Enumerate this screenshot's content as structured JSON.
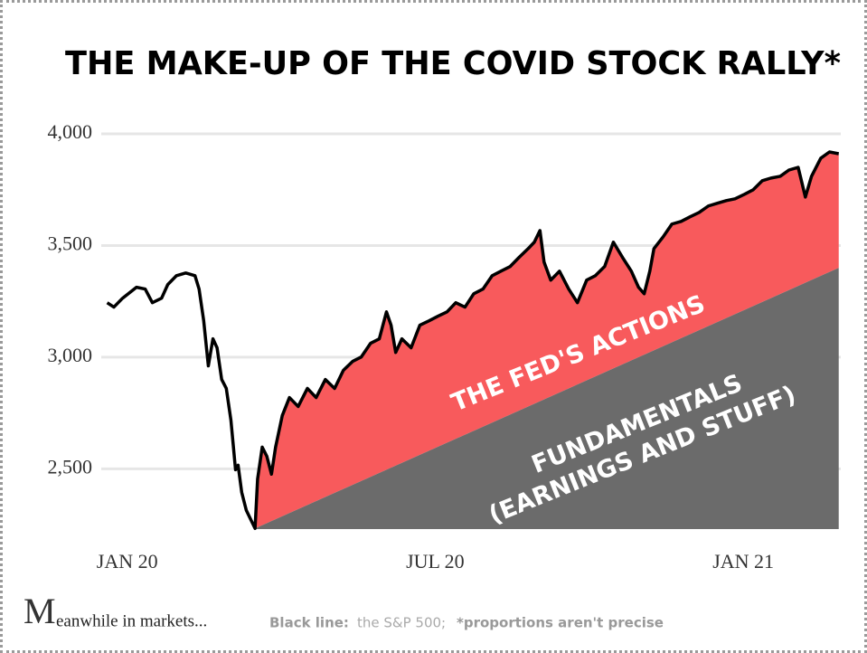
{
  "chart_data": {
    "type": "line",
    "title": "THE MAKE-UP OF THE COVID STOCK RALLY*",
    "x": [
      -0.39,
      -0.26,
      -0.09,
      0.18,
      0.35,
      0.49,
      0.67,
      0.79,
      0.96,
      1.14,
      1.32,
      1.4,
      1.49,
      1.58,
      1.67,
      1.75,
      1.84,
      1.93,
      2.02,
      2.11,
      2.16,
      2.23,
      2.32,
      2.49,
      2.54,
      2.63,
      2.72,
      2.81,
      2.89,
      3.02,
      3.16,
      3.33,
      3.51,
      3.68,
      3.86,
      4.04,
      4.21,
      4.39,
      4.56,
      4.74,
      4.91,
      5.05,
      5.14,
      5.23,
      5.35,
      5.53,
      5.7,
      5.88,
      6.05,
      6.23,
      6.4,
      6.58,
      6.75,
      6.93,
      7.11,
      7.28,
      7.46,
      7.63,
      7.81,
      7.93,
      8.04,
      8.12,
      8.25,
      8.42,
      8.6,
      8.77,
      8.95,
      9.12,
      9.3,
      9.47,
      9.65,
      9.82,
      9.96,
      10.07,
      10.18,
      10.26,
      10.44,
      10.61,
      10.79,
      10.96,
      11.14,
      11.32,
      11.49,
      11.67,
      11.84,
      12.02,
      12.19,
      12.37,
      12.54,
      12.72,
      12.89,
      13.07,
      13.21,
      13.33,
      13.51,
      13.68,
      13.86
    ],
    "values": [
      3244,
      3224,
      3264,
      3313,
      3305,
      3244,
      3264,
      3325,
      3365,
      3377,
      3365,
      3305,
      3163,
      2961,
      3082,
      3042,
      2900,
      2860,
      2718,
      2496,
      2516,
      2395,
      2314,
      2233,
      2455,
      2597,
      2556,
      2476,
      2597,
      2738,
      2819,
      2779,
      2860,
      2819,
      2900,
      2860,
      2941,
      2981,
      3001,
      3062,
      3082,
      3203,
      3143,
      3021,
      3082,
      3042,
      3143,
      3163,
      3183,
      3203,
      3244,
      3224,
      3284,
      3305,
      3365,
      3385,
      3406,
      3446,
      3486,
      3515,
      3567,
      3426,
      3345,
      3385,
      3305,
      3244,
      3345,
      3365,
      3406,
      3515,
      3446,
      3385,
      3313,
      3284,
      3385,
      3486,
      3539,
      3596,
      3608,
      3628,
      3648,
      3677,
      3689,
      3701,
      3709,
      3729,
      3749,
      3790,
      3802,
      3810,
      3838,
      3850,
      3717,
      3810,
      3891,
      3919,
      3911
    ],
    "line_color": "#000000",
    "fundamentals": {
      "x": [
        2.49,
        13.86
      ],
      "values": [
        2233,
        3400
      ],
      "color": "#6b6b6b",
      "label_lines": [
        "FUNDAMENTALS",
        "(EARNINGS AND STUFF)"
      ]
    },
    "fed": {
      "label": "THE FED'S ACTIONS",
      "color": "#f85a5c"
    },
    "xlim": [
      -0.4,
      13.9
    ],
    "xticks": [
      {
        "value": 0,
        "label": "JAN 20"
      },
      {
        "value": 6,
        "label": "JUL 20"
      },
      {
        "value": 12,
        "label": "JAN 21"
      }
    ],
    "ylim": [
      2230,
      4000
    ],
    "yticks": [
      {
        "value": 2500,
        "label": "2,500"
      },
      {
        "value": 3000,
        "label": "3,000"
      },
      {
        "value": 3500,
        "label": "3,500"
      },
      {
        "value": 4000,
        "label": "4,000"
      }
    ],
    "grid": true
  },
  "footer": {
    "brand_initial": "M",
    "brand_rest": "eanwhile in markets...",
    "note_label": "Black line:",
    "note_text": "the S&P 500;",
    "note_extra": "*proportions aren't precise"
  }
}
